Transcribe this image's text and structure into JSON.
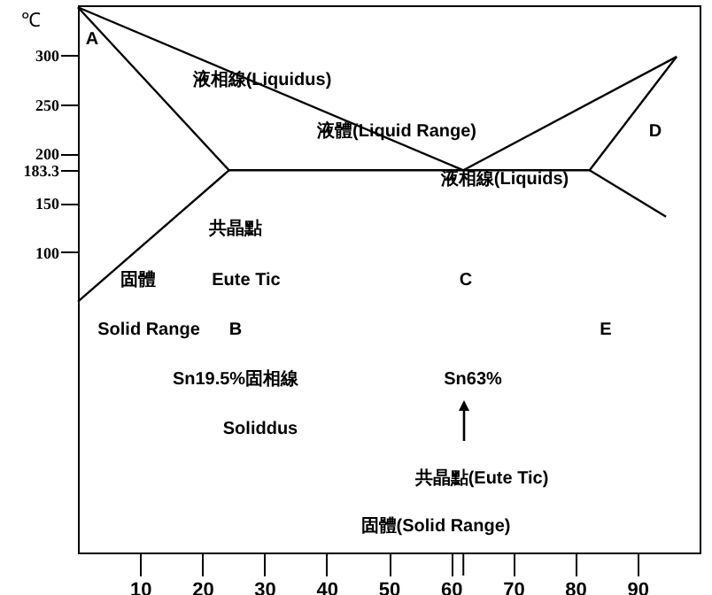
{
  "chart_data": {
    "type": "line",
    "ylabel": "℃",
    "xlim": [
      0,
      100
    ],
    "ylim": [
      -204,
      350
    ],
    "xticks": [
      10,
      20,
      30,
      40,
      50,
      60,
      {
        "value": 62,
        "label": null
      },
      70,
      80,
      90
    ],
    "yticks": [
      100,
      150,
      183.3,
      200,
      250,
      300
    ],
    "series": [
      {
        "color": "#000000",
        "x": [
          0,
          62
        ],
        "values": [
          348,
          183
        ]
      },
      {
        "color": "#000000",
        "x": [
          62,
          96.3
        ],
        "values": [
          183,
          298
        ]
      },
      {
        "color": "#000000",
        "x": [
          96.3,
          82.3,
          94.6
        ],
        "values": [
          298,
          183,
          136
        ]
      },
      {
        "color": "#000000",
        "x": [
          0,
          24.3,
          0
        ],
        "values": [
          348,
          183,
          50
        ]
      },
      {
        "color": "#000000",
        "x": [
          24.3,
          82.3
        ],
        "values": [
          183,
          183
        ]
      }
    ],
    "annotations": [
      "A",
      "液相線(Liquidus)",
      "液體(Liquid Range)",
      "D",
      "液相線(Liquids)",
      "共晶點",
      "固體",
      "Eute Tic",
      "C",
      "Solid Range",
      "B",
      "E",
      "Sn19.5%固相線",
      "Sn63%",
      "Soliddus",
      "共晶點(Eute Tic)",
      "固體(Solid Range)"
    ]
  }
}
